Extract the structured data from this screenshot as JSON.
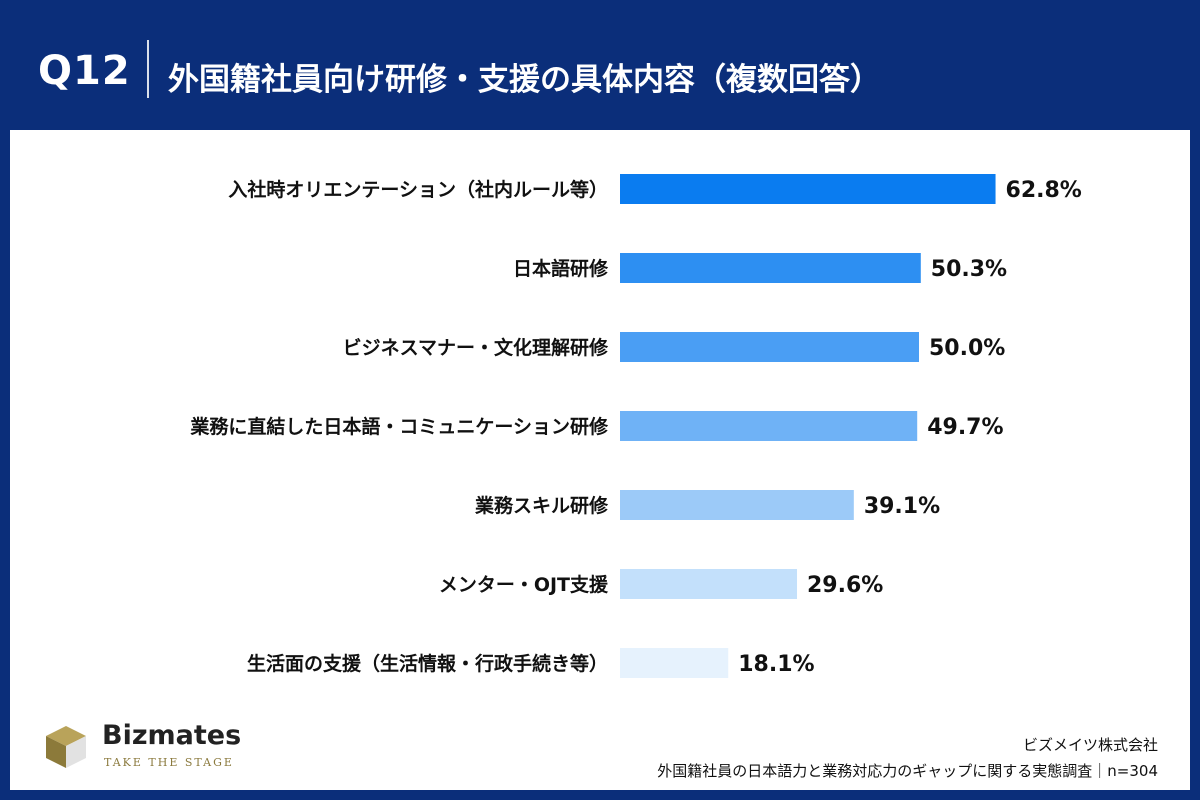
{
  "header": {
    "question_number": "Q12",
    "title": "外国籍社員向け研修・支援の具体内容（複数回答）"
  },
  "chart_data": {
    "type": "bar",
    "orientation": "horizontal",
    "title": "外国籍社員向け研修・支援の具体内容（複数回答）",
    "categories": [
      "入社時オリエンテーション（社内ルール等）",
      "日本語研修",
      "ビジネスマナー・文化理解研修",
      "業務に直結した日本語・コミュニケーション研修",
      "業務スキル研修",
      "メンター・OJT支援",
      "生活面の支援（生活情報・行政手続き等）"
    ],
    "values": [
      62.8,
      50.3,
      50.0,
      49.7,
      39.1,
      29.6,
      18.1
    ],
    "value_labels": [
      "62.8%",
      "50.3%",
      "50.0%",
      "49.7%",
      "39.1%",
      "29.6%",
      "18.1%"
    ],
    "unit": "%",
    "xlim": [
      0,
      100
    ],
    "grid": false,
    "bar_colors": [
      "#0a7cf0",
      "#2d8ff2",
      "#4a9ef4",
      "#6fb2f6",
      "#9ccaf8",
      "#c3e0fb",
      "#e6f2fd"
    ]
  },
  "logo": {
    "name": "Bizmates",
    "tagline": "TAKE THE STAGE"
  },
  "footer": {
    "company": "ビズメイツ株式会社",
    "survey": "外国籍社員の日本語力と業務対応力のギャップに関する実態調査｜n=304"
  }
}
